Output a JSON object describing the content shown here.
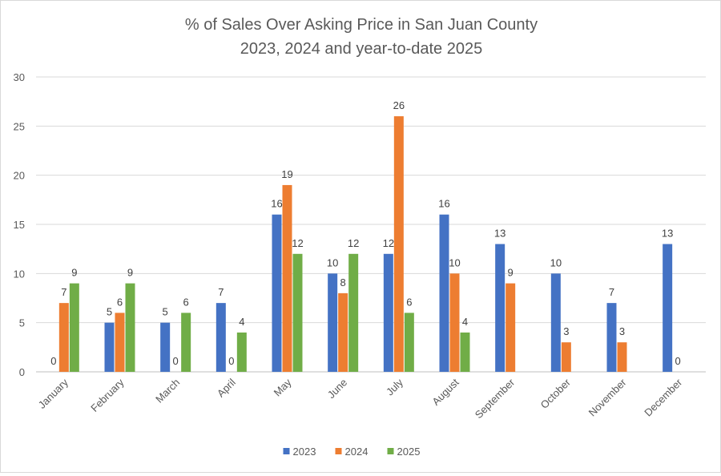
{
  "chart_data": {
    "type": "bar",
    "title_line1": "% of Sales Over Asking Price in San Juan County",
    "title_line2": "2023, 2024 and year-to-date 2025",
    "xlabel": "",
    "ylabel": "",
    "ylim": [
      0,
      30
    ],
    "yticks": [
      "0",
      "5",
      "10",
      "15",
      "20",
      "25",
      "30"
    ],
    "grid": true,
    "legend_position": "bottom",
    "categories": [
      "January",
      "February",
      "March",
      "April",
      "May",
      "June",
      "July",
      "August",
      "September",
      "October",
      "November",
      "December"
    ],
    "series": [
      {
        "name": "2023",
        "color": "#4472C4",
        "values": [
          0,
          5,
          5,
          7,
          16,
          10,
          12,
          16,
          13,
          10,
          7,
          13
        ],
        "labels": [
          "0",
          "5",
          "5",
          "7",
          "16",
          "10",
          "12",
          "16",
          "13",
          "10",
          "7",
          "13"
        ]
      },
      {
        "name": "2024",
        "color": "#ED7D31",
        "values": [
          7,
          6,
          0,
          0,
          19,
          8,
          26,
          10,
          9,
          3,
          3,
          0
        ],
        "labels": [
          "7",
          "6",
          "0",
          "0",
          "19",
          "8",
          "26",
          "10",
          "9",
          "3",
          "3",
          "0"
        ]
      },
      {
        "name": "2025",
        "color": "#70AD47",
        "values": [
          9,
          9,
          6,
          4,
          12,
          12,
          6,
          4,
          null,
          null,
          null,
          null
        ],
        "labels": [
          "9",
          "9",
          "6",
          "4",
          "12",
          "12",
          "6",
          "4",
          null,
          null,
          null,
          null
        ]
      }
    ]
  }
}
